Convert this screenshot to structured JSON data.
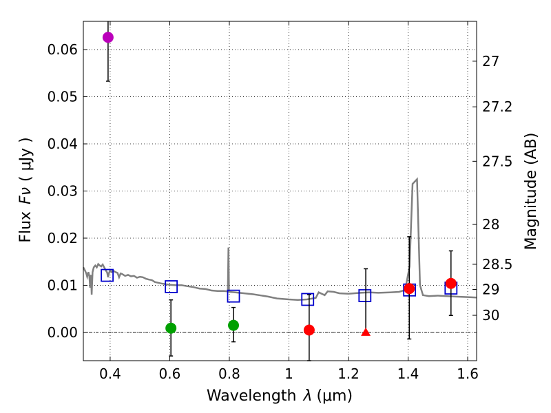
{
  "chart_data": {
    "type": "scatter",
    "xlabel": "Wavelength",
    "xlabel_symbol": "λ",
    "xlabel_unit": "(μm)",
    "ylabel": "Flux",
    "ylabel_symbol": "Fν",
    "ylabel_unit": "( μJy )",
    "right_ylabel": "Magnitude (AB)",
    "xlim": [
      0.31,
      1.63
    ],
    "ylim": [
      -0.006,
      0.066
    ],
    "grid": true,
    "x_ticks": [
      0.4,
      0.6,
      0.8,
      1.0,
      1.2,
      1.4,
      1.6
    ],
    "x_tick_labels": [
      "0.4",
      "0.6",
      "0.8",
      "1",
      "1.2",
      "1.4",
      "1.6"
    ],
    "y_ticks": [
      0.0,
      0.01,
      0.02,
      0.03,
      0.04,
      0.05,
      0.06
    ],
    "y_tick_labels": [
      "0.00",
      "0.01",
      "0.02",
      "0.03",
      "0.04",
      "0.05",
      "0.06"
    ],
    "mag_ticks": [
      "27",
      "27.2",
      "27.5",
      "28",
      "28.5",
      "29",
      "30"
    ],
    "mag_values": [
      27,
      27.2,
      27.5,
      28,
      28.5,
      29,
      30
    ],
    "colors": {
      "model": "#808080",
      "synthetic": "#0000cc",
      "uv": "#bb00bb",
      "optical": "#00a000",
      "nir": "#ff0000",
      "errorbar": "#000000",
      "zero_line": "#000000"
    },
    "model_spectrum": [
      [
        0.31,
        0.0138
      ],
      [
        0.315,
        0.0132
      ],
      [
        0.32,
        0.0125
      ],
      [
        0.323,
        0.0118
      ],
      [
        0.327,
        0.0128
      ],
      [
        0.33,
        0.012
      ],
      [
        0.333,
        0.0095
      ],
      [
        0.336,
        0.0122
      ],
      [
        0.338,
        0.008
      ],
      [
        0.341,
        0.0128
      ],
      [
        0.345,
        0.0138
      ],
      [
        0.35,
        0.0142
      ],
      [
        0.355,
        0.0138
      ],
      [
        0.36,
        0.0145
      ],
      [
        0.365,
        0.0142
      ],
      [
        0.37,
        0.014
      ],
      [
        0.375,
        0.0144
      ],
      [
        0.38,
        0.0138
      ],
      [
        0.385,
        0.0132
      ],
      [
        0.39,
        0.0127
      ],
      [
        0.393,
        0.0117
      ],
      [
        0.395,
        0.0124
      ],
      [
        0.4,
        0.0132
      ],
      [
        0.405,
        0.0128
      ],
      [
        0.41,
        0.0131
      ],
      [
        0.418,
        0.0128
      ],
      [
        0.425,
        0.0126
      ],
      [
        0.43,
        0.0117
      ],
      [
        0.435,
        0.0125
      ],
      [
        0.44,
        0.0124
      ],
      [
        0.45,
        0.012
      ],
      [
        0.46,
        0.0122
      ],
      [
        0.47,
        0.0119
      ],
      [
        0.48,
        0.012
      ],
      [
        0.49,
        0.0116
      ],
      [
        0.5,
        0.0118
      ],
      [
        0.51,
        0.0117
      ],
      [
        0.52,
        0.0114
      ],
      [
        0.53,
        0.0112
      ],
      [
        0.54,
        0.0111
      ],
      [
        0.55,
        0.0107
      ],
      [
        0.57,
        0.0104
      ],
      [
        0.59,
        0.0102
      ],
      [
        0.6,
        0.0101
      ],
      [
        0.62,
        0.01
      ],
      [
        0.64,
        0.01
      ],
      [
        0.66,
        0.0098
      ],
      [
        0.68,
        0.0096
      ],
      [
        0.7,
        0.0093
      ],
      [
        0.72,
        0.0092
      ],
      [
        0.74,
        0.0089
      ],
      [
        0.76,
        0.0088
      ],
      [
        0.78,
        0.0088
      ],
      [
        0.795,
        0.0087
      ],
      [
        0.797,
        0.018
      ],
      [
        0.799,
        0.0086
      ],
      [
        0.82,
        0.0085
      ],
      [
        0.85,
        0.0083
      ],
      [
        0.88,
        0.0081
      ],
      [
        0.9,
        0.0079
      ],
      [
        0.93,
        0.0076
      ],
      [
        0.96,
        0.0072
      ],
      [
        1.0,
        0.007
      ],
      [
        1.03,
        0.0069
      ],
      [
        1.06,
        0.007
      ],
      [
        1.09,
        0.0073
      ],
      [
        1.1,
        0.0085
      ],
      [
        1.12,
        0.0079
      ],
      [
        1.13,
        0.0087
      ],
      [
        1.15,
        0.0086
      ],
      [
        1.17,
        0.0083
      ],
      [
        1.2,
        0.0082
      ],
      [
        1.24,
        0.0084
      ],
      [
        1.27,
        0.0085
      ],
      [
        1.3,
        0.0084
      ],
      [
        1.34,
        0.0085
      ],
      [
        1.37,
        0.0086
      ],
      [
        1.39,
        0.009
      ],
      [
        1.405,
        0.014
      ],
      [
        1.415,
        0.0315
      ],
      [
        1.43,
        0.0325
      ],
      [
        1.44,
        0.01
      ],
      [
        1.45,
        0.0079
      ],
      [
        1.47,
        0.0077
      ],
      [
        1.5,
        0.0078
      ],
      [
        1.53,
        0.0077
      ],
      [
        1.56,
        0.0076
      ],
      [
        1.6,
        0.0075
      ],
      [
        1.63,
        0.0074
      ]
    ],
    "synthetic_photometry": [
      {
        "x": 0.39,
        "y": 0.0121
      },
      {
        "x": 0.605,
        "y": 0.0097
      },
      {
        "x": 0.814,
        "y": 0.0077
      },
      {
        "x": 1.063,
        "y": 0.007
      },
      {
        "x": 1.255,
        "y": 0.0078
      },
      {
        "x": 1.405,
        "y": 0.009
      },
      {
        "x": 1.544,
        "y": 0.0094
      }
    ],
    "observations": [
      {
        "x": 0.393,
        "y": 0.0626,
        "err_low": 0.0093,
        "err_high": 0.0035,
        "marker": "circle",
        "band": "uv"
      },
      {
        "x": 0.604,
        "y": 0.0009,
        "err_low": 0.0059,
        "err_high": 0.006,
        "marker": "circle",
        "band": "optical"
      },
      {
        "x": 0.814,
        "y": 0.0015,
        "err_low": 0.0035,
        "err_high": 0.0038,
        "marker": "circle",
        "band": "optical"
      },
      {
        "x": 1.068,
        "y": 0.0005,
        "err_low": 0.0065,
        "err_high": 0.0075,
        "marker": "circle",
        "band": "nir"
      },
      {
        "x": 1.258,
        "y": 0.0,
        "err_low": 0.0,
        "err_high": 0.0135,
        "marker": "triangle",
        "band": "nir"
      },
      {
        "x": 1.404,
        "y": 0.0093,
        "err_low": 0.0107,
        "err_high": 0.011,
        "marker": "circle",
        "band": "nir"
      },
      {
        "x": 1.544,
        "y": 0.0104,
        "err_low": 0.0068,
        "err_high": 0.0069,
        "marker": "circle",
        "band": "nir"
      }
    ]
  }
}
